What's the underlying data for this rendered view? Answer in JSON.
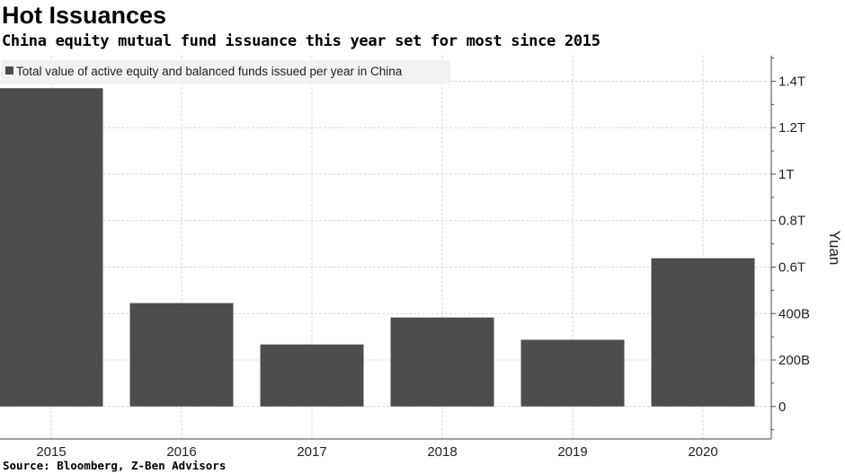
{
  "chart_data": {
    "type": "bar",
    "title": "Hot Issuances",
    "subtitle": "China equity mutual fund issuance this year set for most since 2015",
    "source": "Source: Bloomberg, Z-Ben Advisors",
    "legend": {
      "entries": [
        "Total value of active equity and balanced funds issued per year in China"
      ],
      "placement": "top-left"
    },
    "categories": [
      "2015",
      "2016",
      "2017",
      "2018",
      "2019",
      "2020"
    ],
    "series": [
      {
        "name": "Total value of active equity and balanced funds issued per year in China",
        "values": [
          1370,
          445,
          267,
          383,
          287,
          638
        ],
        "color": "#4d4d4d"
      }
    ],
    "value_unit": "billion yuan",
    "ylabel": "Yuan",
    "y_axis_position": "right",
    "ylim": [
      -140,
      1510
    ],
    "yticks": [
      {
        "value": 0,
        "label": "0"
      },
      {
        "value": 200,
        "label": "200B"
      },
      {
        "value": 400,
        "label": "400B"
      },
      {
        "value": 600,
        "label": "0.6T"
      },
      {
        "value": 800,
        "label": "0.8T"
      },
      {
        "value": 1000,
        "label": "1T"
      },
      {
        "value": 1200,
        "label": "1.2T"
      },
      {
        "value": 1400,
        "label": "1.4T"
      }
    ],
    "grid": true
  }
}
